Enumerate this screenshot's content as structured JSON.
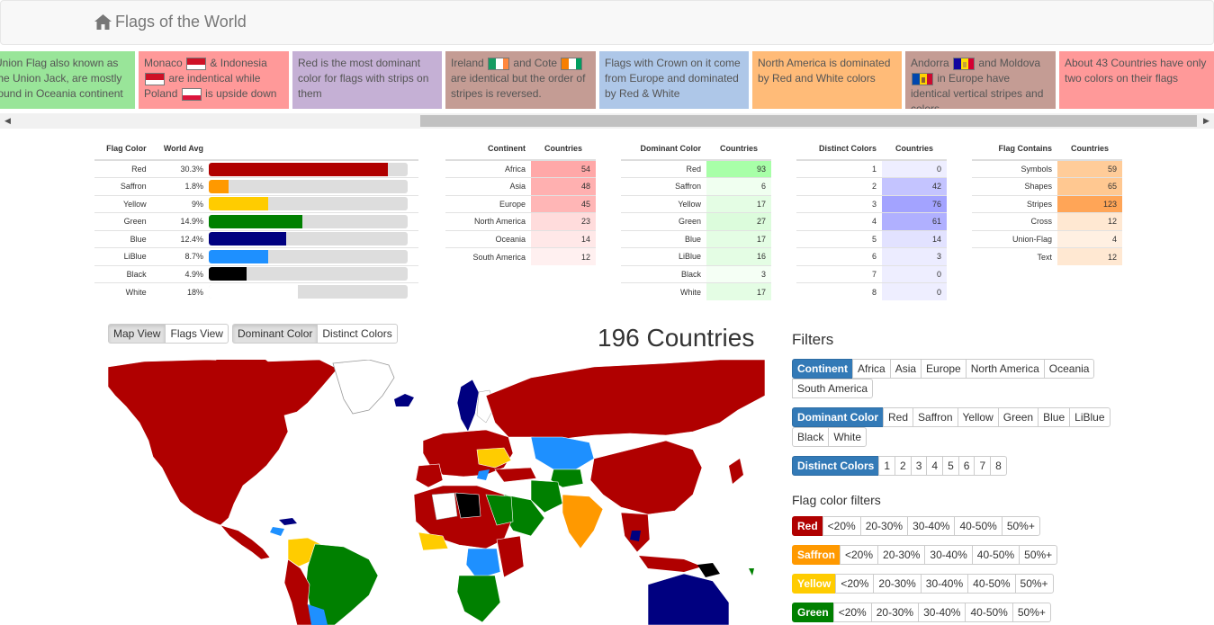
{
  "navbar": {
    "title": "Flags of the World"
  },
  "facts": [
    {
      "text": "Union Flag also known as the Union Jack, are mostly found in Oceania continent",
      "color": "#99e599"
    },
    {
      "pre": "Monaco",
      "mid1": "& Indonesia",
      "mid2": "are indentical while Poland",
      "post": "is upside down",
      "color": "#ff9999"
    },
    {
      "text": "Red is the most dominant color for flags with strips on them",
      "color": "#c5b0d5"
    },
    {
      "pre": "Ireland",
      "mid1": "and Cote",
      "post": "are identical but the order of stripes is reversed.",
      "color": "#c49c94"
    },
    {
      "text": "Flags with Crown on it come from Europe and dominated by Red & White",
      "color": "#aec7e8"
    },
    {
      "text": "North America is dominated by Red and White colors",
      "color": "#ffbb78"
    },
    {
      "pre": "Andorra",
      "mid1": "and Moldova",
      "post": "in Europe have identical vertical stripes and colors.",
      "color": "#c49c94"
    },
    {
      "text": "About 43 Countries have only two colors on their flags",
      "color": "#ff9999"
    }
  ],
  "flag_color_table": {
    "headers": [
      "Flag Color",
      "World Avg"
    ],
    "rows": [
      {
        "label": "Red",
        "value": "30.3%",
        "pct": 0.9,
        "color": "#b00000"
      },
      {
        "label": "Saffron",
        "value": "1.8%",
        "pct": 0.1,
        "color": "#ff9900"
      },
      {
        "label": "Yellow",
        "value": "9%",
        "pct": 0.3,
        "color": "#ffcc00"
      },
      {
        "label": "Green",
        "value": "14.9%",
        "pct": 0.47,
        "color": "#008000"
      },
      {
        "label": "Blue",
        "value": "12.4%",
        "pct": 0.39,
        "color": "#000080"
      },
      {
        "label": "LiBlue",
        "value": "8.7%",
        "pct": 0.3,
        "color": "#1e90ff"
      },
      {
        "label": "Black",
        "value": "4.9%",
        "pct": 0.19,
        "color": "#000000"
      },
      {
        "label": "White",
        "value": "18%",
        "pct": 0.45,
        "color": "#ffffff"
      }
    ]
  },
  "continent_table": {
    "headers": [
      "Continent",
      "Countries"
    ],
    "rows": [
      {
        "label": "Africa",
        "value": "54",
        "color": "#ffa8a8"
      },
      {
        "label": "Asia",
        "value": "48",
        "color": "#ffb0b0"
      },
      {
        "label": "Europe",
        "value": "45",
        "color": "#ffb6b6"
      },
      {
        "label": "North America",
        "value": "23",
        "color": "#ffdcdc"
      },
      {
        "label": "Oceania",
        "value": "14",
        "color": "#ffe8e8"
      },
      {
        "label": "South America",
        "value": "12",
        "color": "#fff0f0"
      }
    ]
  },
  "dominant_table": {
    "headers": [
      "Dominant Color",
      "Countries"
    ],
    "rows": [
      {
        "label": "Red",
        "value": "93",
        "color": "#a8ffa8"
      },
      {
        "label": "Saffron",
        "value": "6",
        "color": "#f0fff0"
      },
      {
        "label": "Yellow",
        "value": "17",
        "color": "#e4fde4"
      },
      {
        "label": "Green",
        "value": "27",
        "color": "#dcfcdc"
      },
      {
        "label": "Blue",
        "value": "17",
        "color": "#e4fde4"
      },
      {
        "label": "LiBlue",
        "value": "16",
        "color": "#e4fde4"
      },
      {
        "label": "Black",
        "value": "3",
        "color": "#f5fff5"
      },
      {
        "label": "White",
        "value": "17",
        "color": "#e4fde4"
      }
    ]
  },
  "distinct_table": {
    "headers": [
      "Distinct Colors",
      "Countries"
    ],
    "rows": [
      {
        "label": "1",
        "value": "0",
        "color": "#eeeeff"
      },
      {
        "label": "2",
        "value": "42",
        "color": "#c4c4ff"
      },
      {
        "label": "3",
        "value": "76",
        "color": "#a3a3ff"
      },
      {
        "label": "4",
        "value": "61",
        "color": "#b0b0ff"
      },
      {
        "label": "5",
        "value": "14",
        "color": "#e2e2ff"
      },
      {
        "label": "6",
        "value": "3",
        "color": "#ececff"
      },
      {
        "label": "7",
        "value": "0",
        "color": "#eeeeff"
      },
      {
        "label": "8",
        "value": "0",
        "color": "#eeeeff"
      }
    ]
  },
  "contains_table": {
    "headers": [
      "Flag Contains",
      "Countries"
    ],
    "rows": [
      {
        "label": "Symbols",
        "value": "59",
        "color": "#ffcc99"
      },
      {
        "label": "Shapes",
        "value": "65",
        "color": "#ffc891"
      },
      {
        "label": "Stripes",
        "value": "123",
        "color": "#ffa557"
      },
      {
        "label": "Cross",
        "value": "12",
        "color": "#ffe8d2"
      },
      {
        "label": "Union-Flag",
        "value": "4",
        "color": "#fff0e2"
      },
      {
        "label": "Text",
        "value": "12",
        "color": "#ffe8d2"
      }
    ]
  },
  "view_toggle": [
    "Map View",
    "Flags View"
  ],
  "color_toggle": [
    "Dominant Color",
    "Distinct Colors"
  ],
  "count_title": "196 Countries",
  "filters": {
    "title": "Filters",
    "continent": {
      "label": "Continent",
      "options": [
        "Africa",
        "Asia",
        "Europe",
        "North America",
        "Oceania"
      ],
      "options2": [
        "South America"
      ],
      "color": "#337ab7"
    },
    "dominant": {
      "label": "Dominant Color",
      "options": [
        "Red",
        "Saffron",
        "Yellow",
        "Green",
        "Blue",
        "LiBlue"
      ],
      "options2": [
        "Black",
        "White"
      ],
      "color": "#337ab7"
    },
    "distinct": {
      "label": "Distinct Colors",
      "options": [
        "1",
        "2",
        "3",
        "4",
        "5",
        "6",
        "7",
        "8"
      ],
      "color": "#337ab7"
    },
    "flag_color_title": "Flag color filters",
    "ranges": [
      "<20%",
      "20-30%",
      "30-40%",
      "40-50%",
      "50%+"
    ],
    "color_filters": [
      {
        "label": "Red",
        "color": "#b00000"
      },
      {
        "label": "Saffron",
        "color": "#ff9900"
      },
      {
        "label": "Yellow",
        "color": "#ffcc00"
      },
      {
        "label": "Green",
        "color": "#008000"
      }
    ]
  }
}
